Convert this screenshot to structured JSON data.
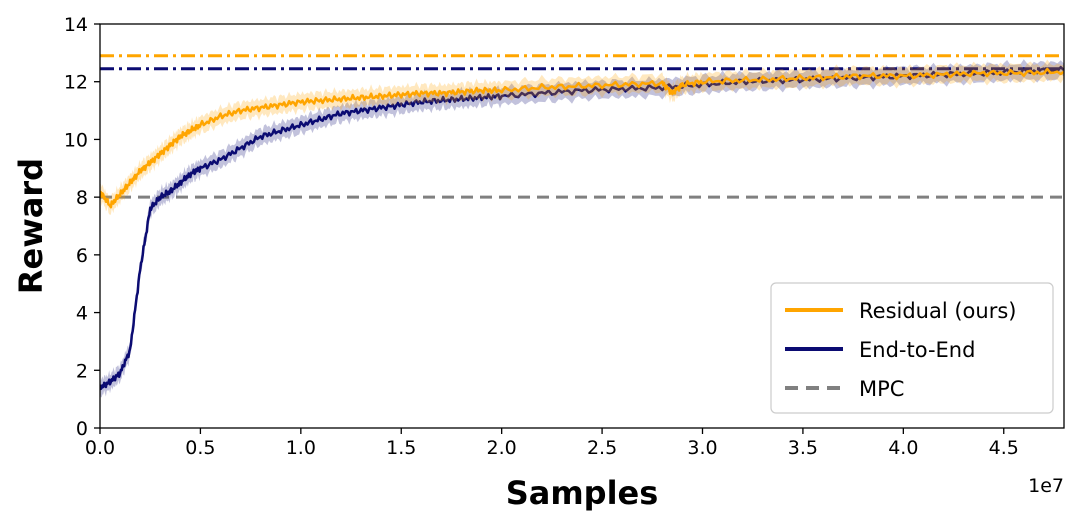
{
  "chart_data": {
    "type": "line",
    "title": "",
    "xlabel": "Samples",
    "ylabel": "Reward",
    "x_multiplier_label": "1e7",
    "xlim": [
      0,
      4.8
    ],
    "ylim": [
      0,
      14
    ],
    "xticks": [
      0.0,
      0.5,
      1.0,
      1.5,
      2.0,
      2.5,
      3.0,
      3.5,
      4.0,
      4.5
    ],
    "xtick_labels": [
      "0.0",
      "0.5",
      "1.0",
      "1.5",
      "2.0",
      "2.5",
      "3.0",
      "3.5",
      "4.0",
      "4.5"
    ],
    "yticks": [
      0,
      2,
      4,
      6,
      8,
      10,
      12,
      14
    ],
    "ytick_labels": [
      "0",
      "2",
      "4",
      "6",
      "8",
      "10",
      "12",
      "14"
    ],
    "grid": false,
    "legend_position": "bottom-right",
    "series": [
      {
        "name": "Residual (ours)",
        "color": "#ffa500",
        "style": "solid",
        "band": true,
        "x": [
          0.0,
          0.05,
          0.1,
          0.15,
          0.2,
          0.25,
          0.3,
          0.35,
          0.4,
          0.45,
          0.5,
          0.6,
          0.7,
          0.8,
          0.9,
          1.0,
          1.1,
          1.2,
          1.3,
          1.4,
          1.5,
          1.6,
          1.7,
          1.8,
          1.9,
          2.0,
          2.2,
          2.4,
          2.6,
          2.8,
          2.85,
          2.9,
          3.0,
          3.2,
          3.4,
          3.6,
          3.8,
          4.0,
          4.2,
          4.4,
          4.6,
          4.8
        ],
        "values": [
          8.2,
          7.7,
          8.1,
          8.5,
          8.9,
          9.2,
          9.5,
          9.8,
          10.1,
          10.3,
          10.5,
          10.8,
          11.0,
          11.1,
          11.2,
          11.3,
          11.35,
          11.4,
          11.45,
          11.5,
          11.55,
          11.6,
          11.6,
          11.65,
          11.7,
          11.7,
          11.8,
          11.85,
          11.9,
          11.95,
          11.6,
          11.9,
          12.0,
          12.05,
          12.1,
          12.15,
          12.2,
          12.2,
          12.25,
          12.3,
          12.3,
          12.35
        ]
      },
      {
        "name": "End-to-End",
        "color": "#0b0b72",
        "style": "solid",
        "band": true,
        "x": [
          0.0,
          0.05,
          0.1,
          0.15,
          0.2,
          0.25,
          0.3,
          0.35,
          0.4,
          0.45,
          0.5,
          0.6,
          0.7,
          0.8,
          0.9,
          1.0,
          1.1,
          1.2,
          1.3,
          1.4,
          1.5,
          1.6,
          1.7,
          1.8,
          1.9,
          2.0,
          2.2,
          2.4,
          2.6,
          2.8,
          3.0,
          3.2,
          3.4,
          3.6,
          3.8,
          4.0,
          4.2,
          4.4,
          4.6,
          4.8
        ],
        "values": [
          1.4,
          1.6,
          1.9,
          2.7,
          5.5,
          7.6,
          8.0,
          8.2,
          8.5,
          8.8,
          9.0,
          9.3,
          9.7,
          10.1,
          10.3,
          10.5,
          10.7,
          10.9,
          11.0,
          11.1,
          11.2,
          11.3,
          11.35,
          11.4,
          11.45,
          11.5,
          11.6,
          11.7,
          11.75,
          11.8,
          11.9,
          12.0,
          12.05,
          12.1,
          12.15,
          12.2,
          12.25,
          12.3,
          12.35,
          12.4
        ]
      },
      {
        "name": "MPC",
        "color": "#808080",
        "style": "dashed",
        "constant": 8.0
      }
    ],
    "reference_lines": [
      {
        "color": "#ffa500",
        "style": "dashdot",
        "y": 12.9
      },
      {
        "color": "#0b0b72",
        "style": "dashdot",
        "y": 12.45
      }
    ]
  }
}
